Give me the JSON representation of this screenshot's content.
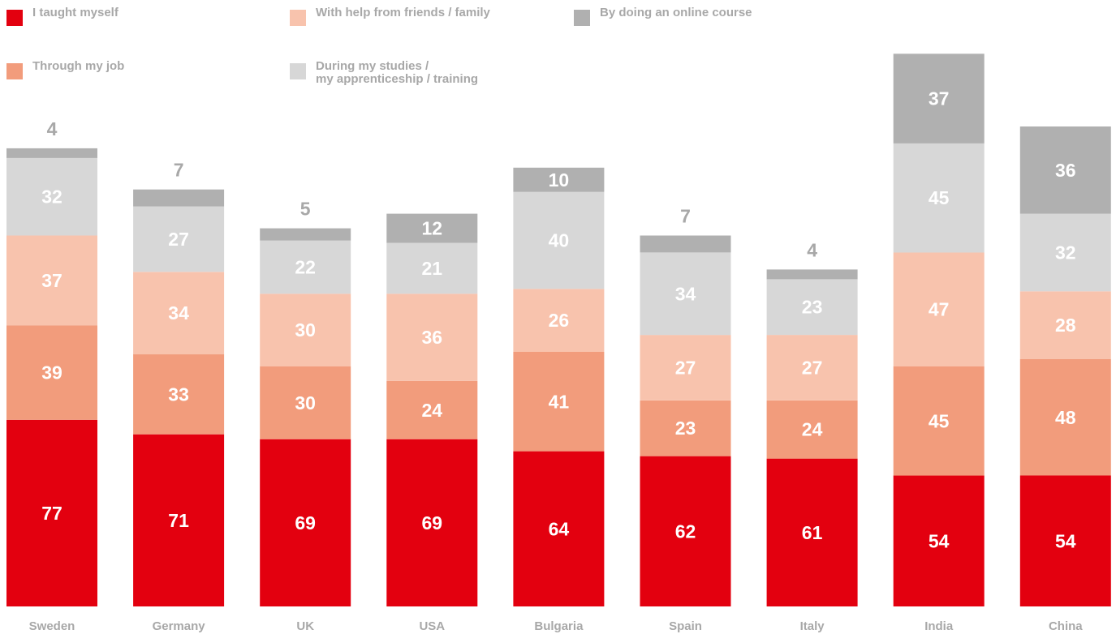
{
  "chart_data": {
    "type": "bar",
    "stacked": true,
    "categories": [
      "Sweden",
      "Germany",
      "UK",
      "USA",
      "Bulgaria",
      "Spain",
      "Italy",
      "India",
      "China"
    ],
    "series": [
      {
        "name": "I taught myself",
        "color": "#e3000f",
        "values": [
          77,
          71,
          69,
          69,
          64,
          62,
          61,
          54,
          54
        ]
      },
      {
        "name": "Through my job",
        "color": "#f29c7c",
        "values": [
          39,
          33,
          30,
          24,
          41,
          23,
          24,
          45,
          48
        ]
      },
      {
        "name": "With help from friends / family",
        "color": "#f8c3ad",
        "values": [
          37,
          34,
          30,
          36,
          26,
          27,
          27,
          47,
          28
        ]
      },
      {
        "name": "During my studies /\nmy apprenticeship / training",
        "color": "#d7d7d7",
        "values": [
          32,
          27,
          22,
          21,
          40,
          34,
          23,
          45,
          32
        ]
      },
      {
        "name": "By doing an online course",
        "color": "#b0b0b0",
        "values": [
          4,
          7,
          5,
          12,
          10,
          7,
          4,
          37,
          36
        ]
      }
    ],
    "ylim": [
      0,
      228
    ],
    "grid": false,
    "legend_position": "top-left"
  }
}
